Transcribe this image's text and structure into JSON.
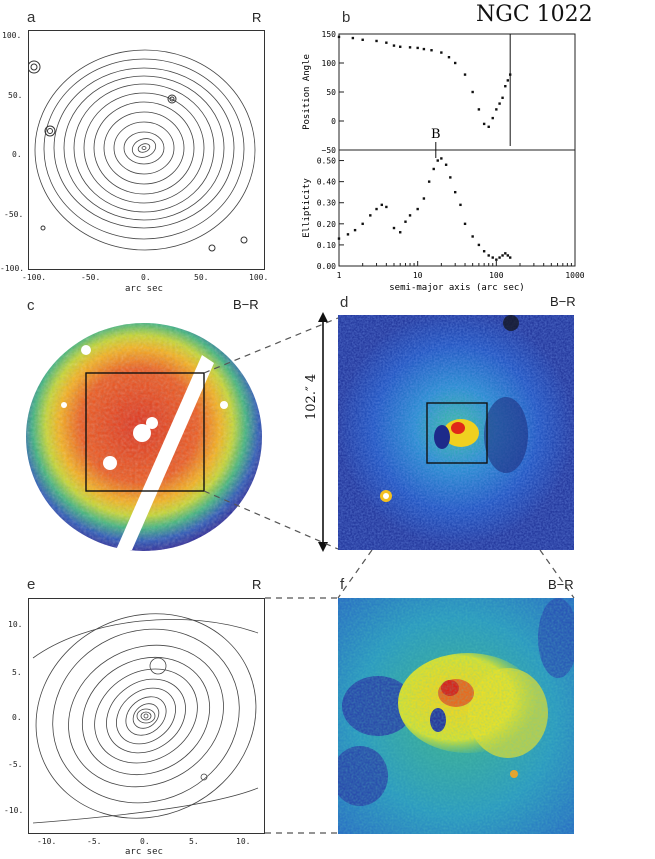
{
  "title": "NGC 1022",
  "panels": {
    "a": {
      "letter": "a",
      "band": "R",
      "xlabel": "arc sec",
      "xticks": [
        "-100.",
        "-50.",
        "0.",
        "50.",
        "100."
      ],
      "yticks": [
        "100.",
        "50.",
        "0.",
        "-50.",
        "-100."
      ]
    },
    "b": {
      "letter": "b"
    },
    "c": {
      "letter": "c",
      "band": "B−R"
    },
    "d": {
      "letter": "d",
      "band": "B−R",
      "scale_label": "102.″ 4"
    },
    "e": {
      "letter": "e",
      "band": "R",
      "xlabel": "arc sec",
      "xticks": [
        "-10.",
        "-5.",
        "0.",
        "5.",
        "10."
      ],
      "yticks": [
        "10.",
        "5.",
        "0.",
        "-5.",
        "-10."
      ]
    },
    "f": {
      "letter": "f",
      "band": "B−R"
    }
  },
  "chart_data": [
    {
      "type": "scatter",
      "panel": "b-top",
      "ylabel": "Position Angle",
      "xlog": true,
      "xlim": [
        1,
        1000
      ],
      "ylim": [
        -50,
        150
      ],
      "yticks": [
        "150",
        "100",
        "50",
        "0",
        "−50"
      ],
      "series": [
        {
          "x": [
            1,
            1.5,
            2,
            3,
            4,
            5,
            6,
            8,
            10,
            12,
            15,
            20,
            25,
            30,
            40,
            50,
            60,
            70,
            80,
            90,
            100,
            110,
            120,
            130,
            140,
            150
          ],
          "y": [
            145,
            143,
            140,
            138,
            135,
            130,
            128,
            127,
            126,
            124,
            122,
            118,
            110,
            100,
            80,
            50,
            20,
            -5,
            -10,
            5,
            20,
            30,
            40,
            60,
            70,
            80
          ]
        }
      ]
    },
    {
      "type": "scatter",
      "panel": "b-bottom",
      "ylabel": "Ellipticity",
      "xlabel": "semi-major axis (arc sec)",
      "xlog": true,
      "xlim": [
        1,
        1000
      ],
      "ylim": [
        0,
        0.55
      ],
      "xticks": [
        "1",
        "10",
        "100",
        "1000"
      ],
      "yticks": [
        "0.50",
        "0.40",
        "0.30",
        "0.20",
        "0.10",
        "0.00"
      ],
      "annotation": {
        "label": "B",
        "x": 17
      },
      "series": [
        {
          "x": [
            1,
            1.3,
            1.6,
            2,
            2.5,
            3,
            3.5,
            4,
            5,
            6,
            7,
            8,
            10,
            12,
            14,
            16,
            18,
            20,
            23,
            26,
            30,
            35,
            40,
            50,
            60,
            70,
            80,
            90,
            100,
            110,
            120,
            130,
            140,
            150
          ],
          "y": [
            0.13,
            0.15,
            0.17,
            0.2,
            0.24,
            0.27,
            0.29,
            0.28,
            0.18,
            0.16,
            0.21,
            0.24,
            0.27,
            0.32,
            0.4,
            0.46,
            0.5,
            0.51,
            0.48,
            0.42,
            0.35,
            0.29,
            0.2,
            0.14,
            0.1,
            0.07,
            0.05,
            0.04,
            0.03,
            0.04,
            0.05,
            0.06,
            0.05,
            0.04
          ]
        }
      ]
    }
  ]
}
